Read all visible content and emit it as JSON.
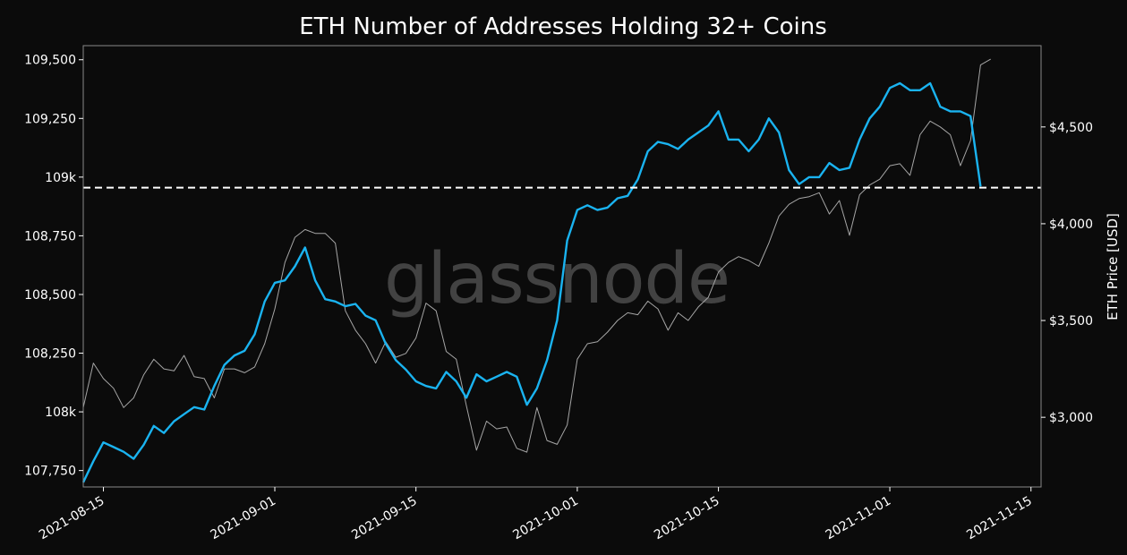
{
  "chart_data": {
    "type": "line",
    "title": "ETH Number of Addresses Holding 32+ Coins",
    "watermark": "glassnode",
    "x_range": [
      "2021-08-13",
      "2021-11-16"
    ],
    "x_ticks": [
      "2021-08-15",
      "2021-09-01",
      "2021-09-15",
      "2021-10-01",
      "2021-10-15",
      "2021-11-01",
      "2021-11-15"
    ],
    "y_left": {
      "label": "",
      "range": [
        107680,
        109560
      ],
      "ticks": [
        107750,
        108000,
        108250,
        108500,
        108750,
        109000,
        109250,
        109500
      ],
      "tick_labels": [
        "107,750",
        "108k",
        "108,250",
        "108,500",
        "108,750",
        "109k",
        "109,250",
        "109,500"
      ]
    },
    "y_right": {
      "label": "ETH Price [USD]",
      "range": [
        2640,
        4920
      ],
      "ticks": [
        3000,
        3500,
        4000,
        4500
      ],
      "tick_labels": [
        "$3,000",
        "$3,500",
        "$4,000",
        "$4,500"
      ]
    },
    "reference_line": {
      "value": 108955,
      "style": "dashed",
      "color": "#ffffff"
    },
    "grid": false,
    "series": [
      {
        "axis": "left",
        "color": "#1ab3f0",
        "x": [
          "2021-08-13",
          "2021-08-14",
          "2021-08-15",
          "2021-08-16",
          "2021-08-17",
          "2021-08-18",
          "2021-08-19",
          "2021-08-20",
          "2021-08-21",
          "2021-08-22",
          "2021-08-23",
          "2021-08-24",
          "2021-08-25",
          "2021-08-26",
          "2021-08-27",
          "2021-08-28",
          "2021-08-29",
          "2021-08-30",
          "2021-08-31",
          "2021-09-01",
          "2021-09-02",
          "2021-09-03",
          "2021-09-04",
          "2021-09-05",
          "2021-09-06",
          "2021-09-07",
          "2021-09-08",
          "2021-09-09",
          "2021-09-10",
          "2021-09-11",
          "2021-09-12",
          "2021-09-13",
          "2021-09-14",
          "2021-09-15",
          "2021-09-16",
          "2021-09-17",
          "2021-09-18",
          "2021-09-19",
          "2021-09-20",
          "2021-09-21",
          "2021-09-22",
          "2021-09-23",
          "2021-09-24",
          "2021-09-25",
          "2021-09-26",
          "2021-09-27",
          "2021-09-28",
          "2021-09-29",
          "2021-09-30",
          "2021-10-01",
          "2021-10-02",
          "2021-10-03",
          "2021-10-04",
          "2021-10-05",
          "2021-10-06",
          "2021-10-07",
          "2021-10-08",
          "2021-10-09",
          "2021-10-10",
          "2021-10-11",
          "2021-10-12",
          "2021-10-13",
          "2021-10-14",
          "2021-10-15",
          "2021-10-16",
          "2021-10-17",
          "2021-10-18",
          "2021-10-19",
          "2021-10-20",
          "2021-10-21",
          "2021-10-22",
          "2021-10-23",
          "2021-10-24",
          "2021-10-25",
          "2021-10-26",
          "2021-10-27",
          "2021-10-28",
          "2021-10-29",
          "2021-10-30",
          "2021-10-31",
          "2021-11-01",
          "2021-11-02",
          "2021-11-03",
          "2021-11-04",
          "2021-11-05",
          "2021-11-06",
          "2021-11-07",
          "2021-11-08",
          "2021-11-09",
          "2021-11-10"
        ],
        "values": [
          107700,
          107790,
          107870,
          107850,
          107830,
          107800,
          107860,
          107940,
          107910,
          107960,
          107990,
          108020,
          108010,
          108110,
          108200,
          108240,
          108260,
          108330,
          108470,
          108550,
          108560,
          108620,
          108700,
          108560,
          108480,
          108470,
          108450,
          108460,
          108410,
          108390,
          108290,
          108220,
          108180,
          108130,
          108110,
          108100,
          108170,
          108130,
          108060,
          108160,
          108130,
          108150,
          108170,
          108150,
          108030,
          108100,
          108220,
          108390,
          108730,
          108860,
          108880,
          108860,
          108870,
          108910,
          108920,
          108990,
          109110,
          109150,
          109140,
          109120,
          109160,
          109190,
          109220,
          109280,
          109160,
          109160,
          109110,
          109160,
          109250,
          109190,
          109030,
          108970,
          109000,
          109000,
          109060,
          109030,
          109040,
          109160,
          109250,
          109300,
          109380,
          109400,
          109370,
          109370,
          109400,
          109300,
          109280,
          109280,
          109260,
          108960
        ]
      },
      {
        "axis": "right",
        "color": "#a6a6a6",
        "x": [
          "2021-08-13",
          "2021-08-14",
          "2021-08-15",
          "2021-08-16",
          "2021-08-17",
          "2021-08-18",
          "2021-08-19",
          "2021-08-20",
          "2021-08-21",
          "2021-08-22",
          "2021-08-23",
          "2021-08-24",
          "2021-08-25",
          "2021-08-26",
          "2021-08-27",
          "2021-08-28",
          "2021-08-29",
          "2021-08-30",
          "2021-08-31",
          "2021-09-01",
          "2021-09-02",
          "2021-09-03",
          "2021-09-04",
          "2021-09-05",
          "2021-09-06",
          "2021-09-07",
          "2021-09-08",
          "2021-09-09",
          "2021-09-10",
          "2021-09-11",
          "2021-09-12",
          "2021-09-13",
          "2021-09-14",
          "2021-09-15",
          "2021-09-16",
          "2021-09-17",
          "2021-09-18",
          "2021-09-19",
          "2021-09-20",
          "2021-09-21",
          "2021-09-22",
          "2021-09-23",
          "2021-09-24",
          "2021-09-25",
          "2021-09-26",
          "2021-09-27",
          "2021-09-28",
          "2021-09-29",
          "2021-09-30",
          "2021-10-01",
          "2021-10-02",
          "2021-10-03",
          "2021-10-04",
          "2021-10-05",
          "2021-10-06",
          "2021-10-07",
          "2021-10-08",
          "2021-10-09",
          "2021-10-10",
          "2021-10-11",
          "2021-10-12",
          "2021-10-13",
          "2021-10-14",
          "2021-10-15",
          "2021-10-16",
          "2021-10-17",
          "2021-10-18",
          "2021-10-19",
          "2021-10-20",
          "2021-10-21",
          "2021-10-22",
          "2021-10-23",
          "2021-10-24",
          "2021-10-25",
          "2021-10-26",
          "2021-10-27",
          "2021-10-28",
          "2021-10-29",
          "2021-10-30",
          "2021-10-31",
          "2021-11-01",
          "2021-11-02",
          "2021-11-03",
          "2021-11-04",
          "2021-11-05",
          "2021-11-06",
          "2021-11-07",
          "2021-11-08",
          "2021-11-09",
          "2021-11-10",
          "2021-11-11"
        ],
        "values": [
          3050,
          3280,
          3200,
          3150,
          3050,
          3100,
          3220,
          3300,
          3250,
          3240,
          3320,
          3210,
          3200,
          3100,
          3250,
          3250,
          3230,
          3260,
          3380,
          3560,
          3800,
          3930,
          3970,
          3950,
          3950,
          3900,
          3550,
          3450,
          3380,
          3280,
          3390,
          3310,
          3330,
          3410,
          3590,
          3550,
          3340,
          3300,
          3060,
          2830,
          2980,
          2940,
          2950,
          2840,
          2820,
          3050,
          2880,
          2860,
          2960,
          3300,
          3380,
          3390,
          3440,
          3500,
          3540,
          3530,
          3600,
          3560,
          3450,
          3540,
          3500,
          3570,
          3620,
          3750,
          3800,
          3830,
          3810,
          3780,
          3900,
          4040,
          4100,
          4130,
          4140,
          4160,
          4050,
          4120,
          3940,
          4150,
          4200,
          4230,
          4300,
          4310,
          4250,
          4460,
          4530,
          4500,
          4460,
          4300,
          4430,
          4820,
          4850
        ]
      }
    ]
  }
}
